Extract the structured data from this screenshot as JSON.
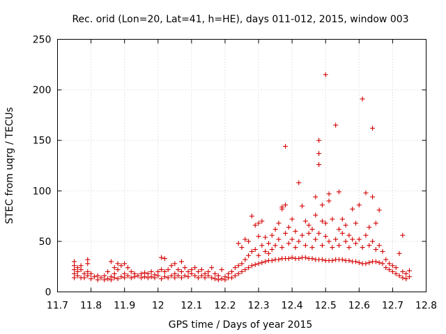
{
  "chart_data": {
    "type": "scatter",
    "title": "Rec. orid (Lon=20, Lat=41, h=HE), days 011-012, 2015, window 003",
    "xlabel": "GPS time / Days of year 2015",
    "ylabel": "STEC from uqrg / TECUs",
    "xlim": [
      11.7,
      12.8
    ],
    "ylim": [
      0,
      250
    ],
    "xticks": [
      "11.7",
      "11.8",
      "11.9",
      "12",
      "12.1",
      "12.2",
      "12.3",
      "12.4",
      "12.5",
      "12.6",
      "12.7",
      "12.8"
    ],
    "yticks": [
      "0",
      "50",
      "100",
      "150",
      "200",
      "250"
    ],
    "grid": true,
    "marker": "plus",
    "marker_color": "#d40000",
    "series": [
      {
        "values": [
          [
            11.75,
            14
          ],
          [
            11.75,
            18
          ],
          [
            11.75,
            22
          ],
          [
            11.75,
            26
          ],
          [
            11.75,
            30
          ],
          [
            11.76,
            16
          ],
          [
            11.76,
            20
          ],
          [
            11.76,
            24
          ],
          [
            11.77,
            14
          ],
          [
            11.77,
            22
          ],
          [
            11.77,
            26
          ],
          [
            11.78,
            14
          ],
          [
            11.78,
            18
          ],
          [
            11.79,
            16
          ],
          [
            11.79,
            20
          ],
          [
            11.79,
            28
          ],
          [
            11.79,
            32
          ],
          [
            11.8,
            13
          ],
          [
            11.8,
            18
          ],
          [
            11.81,
            15
          ],
          [
            11.82,
            12
          ],
          [
            11.82,
            16
          ],
          [
            11.83,
            14
          ],
          [
            11.84,
            12
          ],
          [
            11.84,
            16
          ],
          [
            11.85,
            13
          ],
          [
            11.85,
            20
          ],
          [
            11.86,
            12
          ],
          [
            11.86,
            15
          ],
          [
            11.86,
            30
          ],
          [
            11.87,
            14
          ],
          [
            11.87,
            18
          ],
          [
            11.87,
            24
          ],
          [
            11.88,
            13
          ],
          [
            11.88,
            22
          ],
          [
            11.88,
            28
          ],
          [
            11.89,
            15
          ],
          [
            11.89,
            26
          ],
          [
            11.9,
            14
          ],
          [
            11.9,
            18
          ],
          [
            11.9,
            28
          ],
          [
            11.91,
            16
          ],
          [
            11.91,
            24
          ],
          [
            11.92,
            14
          ],
          [
            11.92,
            20
          ],
          [
            11.93,
            15
          ],
          [
            11.93,
            18
          ],
          [
            11.94,
            16
          ],
          [
            11.95,
            14
          ],
          [
            11.95,
            18
          ],
          [
            11.96,
            15
          ],
          [
            11.96,
            19
          ],
          [
            11.97,
            14
          ],
          [
            11.97,
            18
          ],
          [
            11.98,
            15
          ],
          [
            11.98,
            20
          ],
          [
            11.99,
            14
          ],
          [
            11.99,
            17
          ],
          [
            12.0,
            16
          ],
          [
            12.0,
            20
          ],
          [
            12.01,
            13
          ],
          [
            12.01,
            22
          ],
          [
            12.01,
            34
          ],
          [
            12.02,
            15
          ],
          [
            12.02,
            20
          ],
          [
            12.02,
            33
          ],
          [
            12.03,
            14
          ],
          [
            12.03,
            22
          ],
          [
            12.04,
            16
          ],
          [
            12.04,
            26
          ],
          [
            12.05,
            14
          ],
          [
            12.05,
            18
          ],
          [
            12.05,
            28
          ],
          [
            12.06,
            16
          ],
          [
            12.06,
            22
          ],
          [
            12.07,
            14
          ],
          [
            12.07,
            20
          ],
          [
            12.07,
            30
          ],
          [
            12.08,
            16
          ],
          [
            12.08,
            24
          ],
          [
            12.09,
            15
          ],
          [
            12.09,
            20
          ],
          [
            12.1,
            18
          ],
          [
            12.1,
            22
          ],
          [
            12.11,
            16
          ],
          [
            12.11,
            24
          ],
          [
            12.12,
            14
          ],
          [
            12.12,
            20
          ],
          [
            12.13,
            16
          ],
          [
            12.13,
            22
          ],
          [
            12.14,
            14
          ],
          [
            12.14,
            18
          ],
          [
            12.15,
            16
          ],
          [
            12.15,
            20
          ],
          [
            12.16,
            14
          ],
          [
            12.16,
            24
          ],
          [
            12.17,
            13
          ],
          [
            12.17,
            18
          ],
          [
            12.18,
            12
          ],
          [
            12.18,
            16
          ],
          [
            12.19,
            13
          ],
          [
            12.19,
            22
          ],
          [
            12.2,
            12
          ],
          [
            12.2,
            15
          ],
          [
            12.21,
            14
          ],
          [
            12.21,
            18
          ],
          [
            12.22,
            14
          ],
          [
            12.22,
            20
          ],
          [
            12.23,
            16
          ],
          [
            12.23,
            24
          ],
          [
            12.24,
            18
          ],
          [
            12.24,
            26
          ],
          [
            12.24,
            48
          ],
          [
            12.25,
            20
          ],
          [
            12.25,
            28
          ],
          [
            12.25,
            44
          ],
          [
            12.26,
            22
          ],
          [
            12.26,
            32
          ],
          [
            12.26,
            52
          ],
          [
            12.27,
            24
          ],
          [
            12.27,
            36
          ],
          [
            12.27,
            50
          ],
          [
            12.28,
            26
          ],
          [
            12.28,
            40
          ],
          [
            12.28,
            75
          ],
          [
            12.29,
            27
          ],
          [
            12.29,
            42
          ],
          [
            12.29,
            66
          ],
          [
            12.3,
            28
          ],
          [
            12.3,
            36
          ],
          [
            12.3,
            55
          ],
          [
            12.3,
            68
          ],
          [
            12.31,
            29
          ],
          [
            12.31,
            46
          ],
          [
            12.31,
            70
          ],
          [
            12.32,
            30
          ],
          [
            12.32,
            40
          ],
          [
            12.32,
            54
          ],
          [
            12.33,
            31
          ],
          [
            12.33,
            38
          ],
          [
            12.33,
            48
          ],
          [
            12.34,
            31
          ],
          [
            12.34,
            42
          ],
          [
            12.34,
            56
          ],
          [
            12.35,
            32
          ],
          [
            12.35,
            46
          ],
          [
            12.35,
            62
          ],
          [
            12.36,
            32
          ],
          [
            12.36,
            52
          ],
          [
            12.36,
            68
          ],
          [
            12.37,
            33
          ],
          [
            12.37,
            44
          ],
          [
            12.37,
            82
          ],
          [
            12.37,
            84
          ],
          [
            12.38,
            33
          ],
          [
            12.38,
            58
          ],
          [
            12.38,
            86
          ],
          [
            12.38,
            144
          ],
          [
            12.39,
            33
          ],
          [
            12.39,
            48
          ],
          [
            12.39,
            64
          ],
          [
            12.4,
            34
          ],
          [
            12.4,
            52
          ],
          [
            12.4,
            72
          ],
          [
            12.41,
            33
          ],
          [
            12.41,
            44
          ],
          [
            12.41,
            60
          ],
          [
            12.42,
            33
          ],
          [
            12.42,
            50
          ],
          [
            12.42,
            108
          ],
          [
            12.43,
            34
          ],
          [
            12.43,
            56
          ],
          [
            12.43,
            85
          ],
          [
            12.44,
            34
          ],
          [
            12.44,
            46
          ],
          [
            12.44,
            70
          ],
          [
            12.45,
            33
          ],
          [
            12.45,
            58
          ],
          [
            12.45,
            66
          ],
          [
            12.46,
            33
          ],
          [
            12.46,
            44
          ],
          [
            12.46,
            62
          ],
          [
            12.47,
            32
          ],
          [
            12.47,
            52
          ],
          [
            12.47,
            76
          ],
          [
            12.47,
            94
          ],
          [
            12.48,
            32
          ],
          [
            12.48,
            58
          ],
          [
            12.48,
            126
          ],
          [
            12.48,
            137
          ],
          [
            12.48,
            150
          ],
          [
            12.49,
            32
          ],
          [
            12.49,
            46
          ],
          [
            12.49,
            70
          ],
          [
            12.49,
            86
          ],
          [
            12.5,
            31
          ],
          [
            12.5,
            55
          ],
          [
            12.5,
            68
          ],
          [
            12.5,
            215
          ],
          [
            12.51,
            31
          ],
          [
            12.51,
            50
          ],
          [
            12.51,
            90
          ],
          [
            12.51,
            97
          ],
          [
            12.52,
            31
          ],
          [
            12.52,
            44
          ],
          [
            12.52,
            72
          ],
          [
            12.53,
            32
          ],
          [
            12.53,
            52
          ],
          [
            12.53,
            165
          ],
          [
            12.54,
            32
          ],
          [
            12.54,
            46
          ],
          [
            12.54,
            62
          ],
          [
            12.54,
            99
          ],
          [
            12.55,
            32
          ],
          [
            12.55,
            58
          ],
          [
            12.55,
            72
          ],
          [
            12.56,
            31
          ],
          [
            12.56,
            50
          ],
          [
            12.56,
            66
          ],
          [
            12.57,
            31
          ],
          [
            12.57,
            44
          ],
          [
            12.57,
            56
          ],
          [
            12.58,
            30
          ],
          [
            12.58,
            52
          ],
          [
            12.58,
            82
          ],
          [
            12.59,
            30
          ],
          [
            12.59,
            48
          ],
          [
            12.59,
            68
          ],
          [
            12.6,
            29
          ],
          [
            12.6,
            52
          ],
          [
            12.6,
            86
          ],
          [
            12.61,
            28
          ],
          [
            12.61,
            44
          ],
          [
            12.61,
            191
          ],
          [
            12.62,
            28
          ],
          [
            12.62,
            56
          ],
          [
            12.62,
            98
          ],
          [
            12.63,
            29
          ],
          [
            12.63,
            46
          ],
          [
            12.63,
            64
          ],
          [
            12.64,
            30
          ],
          [
            12.64,
            50
          ],
          [
            12.64,
            94
          ],
          [
            12.64,
            162
          ],
          [
            12.65,
            30
          ],
          [
            12.65,
            42
          ],
          [
            12.65,
            68
          ],
          [
            12.66,
            29
          ],
          [
            12.66,
            46
          ],
          [
            12.66,
            81
          ],
          [
            12.67,
            28
          ],
          [
            12.67,
            40
          ],
          [
            12.68,
            24
          ],
          [
            12.68,
            32
          ],
          [
            12.69,
            22
          ],
          [
            12.69,
            28
          ],
          [
            12.7,
            20
          ],
          [
            12.7,
            26
          ],
          [
            12.71,
            18
          ],
          [
            12.71,
            24
          ],
          [
            12.72,
            16
          ],
          [
            12.72,
            38
          ],
          [
            12.73,
            14
          ],
          [
            12.73,
            20
          ],
          [
            12.73,
            56
          ],
          [
            12.74,
            13
          ],
          [
            12.74,
            18
          ],
          [
            12.75,
            15
          ],
          [
            12.75,
            21
          ]
        ]
      }
    ]
  }
}
